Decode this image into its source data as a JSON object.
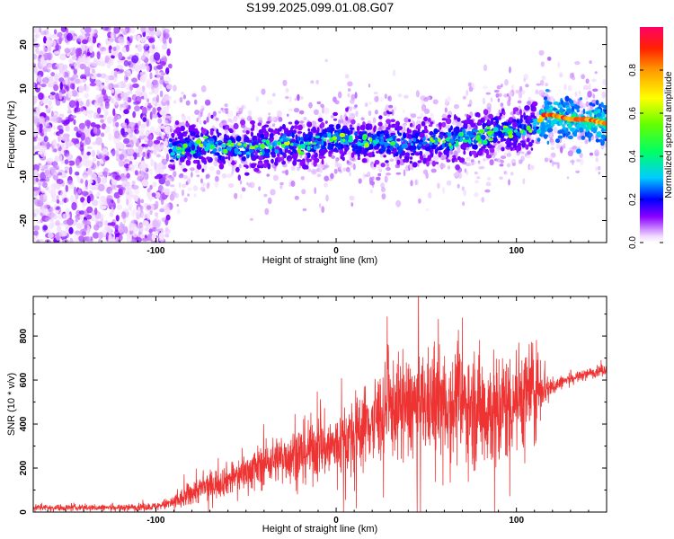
{
  "title": "S199.2025.099.01.08.G07",
  "chart_data": [
    {
      "type": "heatmap",
      "name": "spectrogram",
      "xlabel": "Height of straight line (km)",
      "ylabel": "Frequency (Hz)",
      "xlim": [
        -168,
        150
      ],
      "ylim": [
        -25,
        24
      ],
      "xticks": [
        -100,
        0,
        100
      ],
      "yticks": [
        -20,
        -10,
        0,
        10,
        20
      ],
      "ridge": {
        "x": [
          -95,
          -90,
          -80,
          -70,
          -60,
          -50,
          -40,
          -30,
          -20,
          -10,
          0,
          10,
          20,
          30,
          40,
          50,
          60,
          70,
          80,
          85,
          90,
          100,
          110,
          115,
          120,
          130,
          140,
          150
        ],
        "y": [
          -4,
          -4,
          -3,
          -3,
          -3,
          -4,
          -3,
          -2,
          -3,
          -2,
          -1,
          -2,
          -2,
          -2,
          -3,
          -2,
          -2,
          -1,
          -1,
          0,
          1,
          0,
          1,
          4,
          4,
          3,
          3,
          2
        ]
      },
      "noise_region_x": [
        -168,
        -92
      ],
      "colorbar": {
        "label": "Normalized spectral amplitude",
        "ticks": [
          "0.0",
          "0.2",
          "0.4",
          "0.6",
          "0.8"
        ],
        "range": [
          0,
          1
        ]
      }
    },
    {
      "type": "line",
      "name": "snr",
      "xlabel": "Height of straight line (km)",
      "ylabel": "SNR (10 * v/v)",
      "xlim": [
        -168,
        150
      ],
      "ylim": [
        0,
        980
      ],
      "xticks": [
        -100,
        0,
        100
      ],
      "yticks": [
        0,
        200,
        400,
        600,
        800
      ],
      "color": "#ee3333",
      "envelope": {
        "x": [
          -168,
          -120,
          -100,
          -92,
          -85,
          -80,
          -70,
          -60,
          -50,
          -40,
          -30,
          -20,
          -10,
          0,
          10,
          20,
          30,
          40,
          50,
          60,
          70,
          80,
          90,
          100,
          110,
          115,
          118,
          125,
          135,
          150
        ],
        "mean": [
          20,
          20,
          25,
          40,
          60,
          90,
          120,
          150,
          180,
          220,
          250,
          270,
          290,
          300,
          360,
          420,
          470,
          480,
          490,
          500,
          490,
          470,
          460,
          520,
          560,
          590,
          560,
          590,
          620,
          650
        ],
        "spread": [
          12,
          12,
          15,
          25,
          40,
          50,
          55,
          60,
          70,
          80,
          90,
          110,
          120,
          120,
          140,
          160,
          180,
          190,
          190,
          200,
          210,
          230,
          230,
          200,
          170,
          120,
          40,
          25,
          20,
          20
        ]
      }
    }
  ]
}
